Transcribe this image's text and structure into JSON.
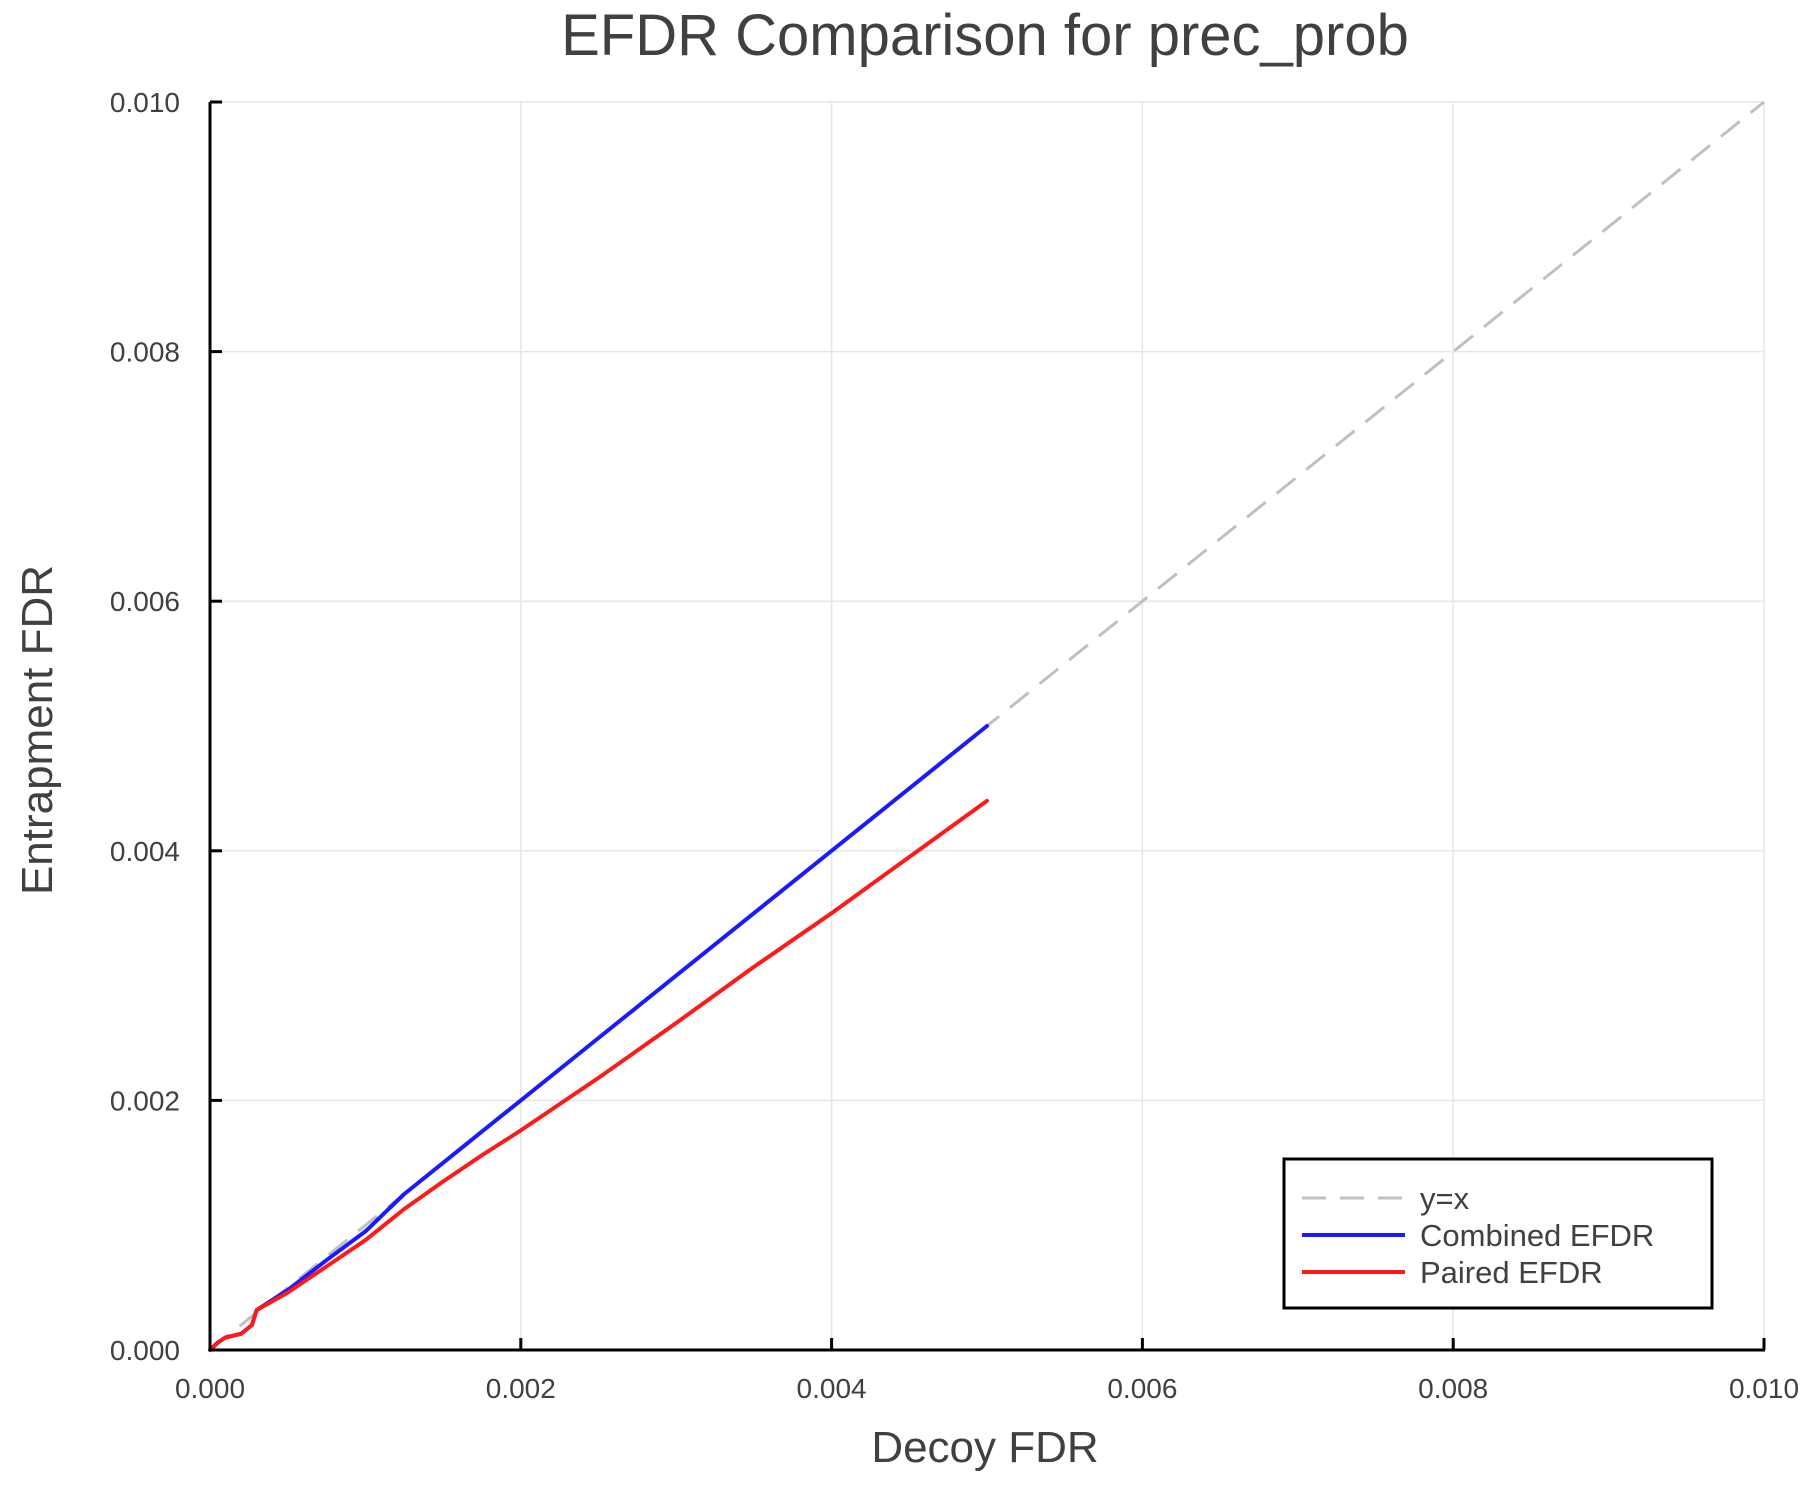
{
  "chart_data": {
    "type": "line",
    "title": "EFDR Comparison for prec_prob",
    "xlabel": "Decoy FDR",
    "ylabel": "Entrapment FDR",
    "xlim": [
      0.0,
      0.01
    ],
    "ylim": [
      0.0,
      0.01
    ],
    "grid": true,
    "legend_position": "bottom-right",
    "x_ticks": [
      "0.000",
      "0.002",
      "0.004",
      "0.006",
      "0.008",
      "0.010"
    ],
    "y_ticks": [
      "0.000",
      "0.002",
      "0.004",
      "0.006",
      "0.008",
      "0.010"
    ],
    "series": [
      {
        "name": "y=x",
        "color": "#c0c0c0",
        "style": "dashed",
        "x": [
          0.0,
          0.01
        ],
        "y": [
          0.0,
          0.01
        ]
      },
      {
        "name": "Combined EFDR",
        "color": "#1a1aff",
        "style": "solid",
        "x": [
          0.0,
          5e-05,
          0.0001,
          0.0002,
          0.00027,
          0.0003,
          0.0005,
          0.00075,
          0.001,
          0.00125,
          0.0015,
          0.00175,
          0.002,
          0.0025,
          0.003,
          0.0035,
          0.004,
          0.0045,
          0.005
        ],
        "y": [
          0.0,
          6e-05,
          0.0001,
          0.00013,
          0.0002,
          0.00032,
          0.00048,
          0.00072,
          0.00095,
          0.00125,
          0.0015,
          0.00175,
          0.002,
          0.0025,
          0.003,
          0.0035,
          0.004,
          0.0045,
          0.005
        ]
      },
      {
        "name": "Paired EFDR",
        "color": "#ff1a1a",
        "style": "solid",
        "x": [
          0.0,
          5e-05,
          0.0001,
          0.0002,
          0.00027,
          0.0003,
          0.0005,
          0.00075,
          0.001,
          0.00125,
          0.0015,
          0.00175,
          0.002,
          0.0025,
          0.003,
          0.0035,
          0.004,
          0.0045,
          0.005
        ],
        "y": [
          0.0,
          6e-05,
          0.0001,
          0.00013,
          0.0002,
          0.00032,
          0.00046,
          0.00067,
          0.00088,
          0.00113,
          0.00135,
          0.00156,
          0.00176,
          0.00218,
          0.00262,
          0.00307,
          0.0035,
          0.00395,
          0.0044
        ]
      }
    ]
  },
  "legend": {
    "items": [
      {
        "label": "y=x",
        "color": "#c0c0c0",
        "dashed": true
      },
      {
        "label": "Combined EFDR",
        "color": "#1a1aff",
        "dashed": false
      },
      {
        "label": "Paired EFDR",
        "color": "#ff1a1a",
        "dashed": false
      }
    ]
  }
}
